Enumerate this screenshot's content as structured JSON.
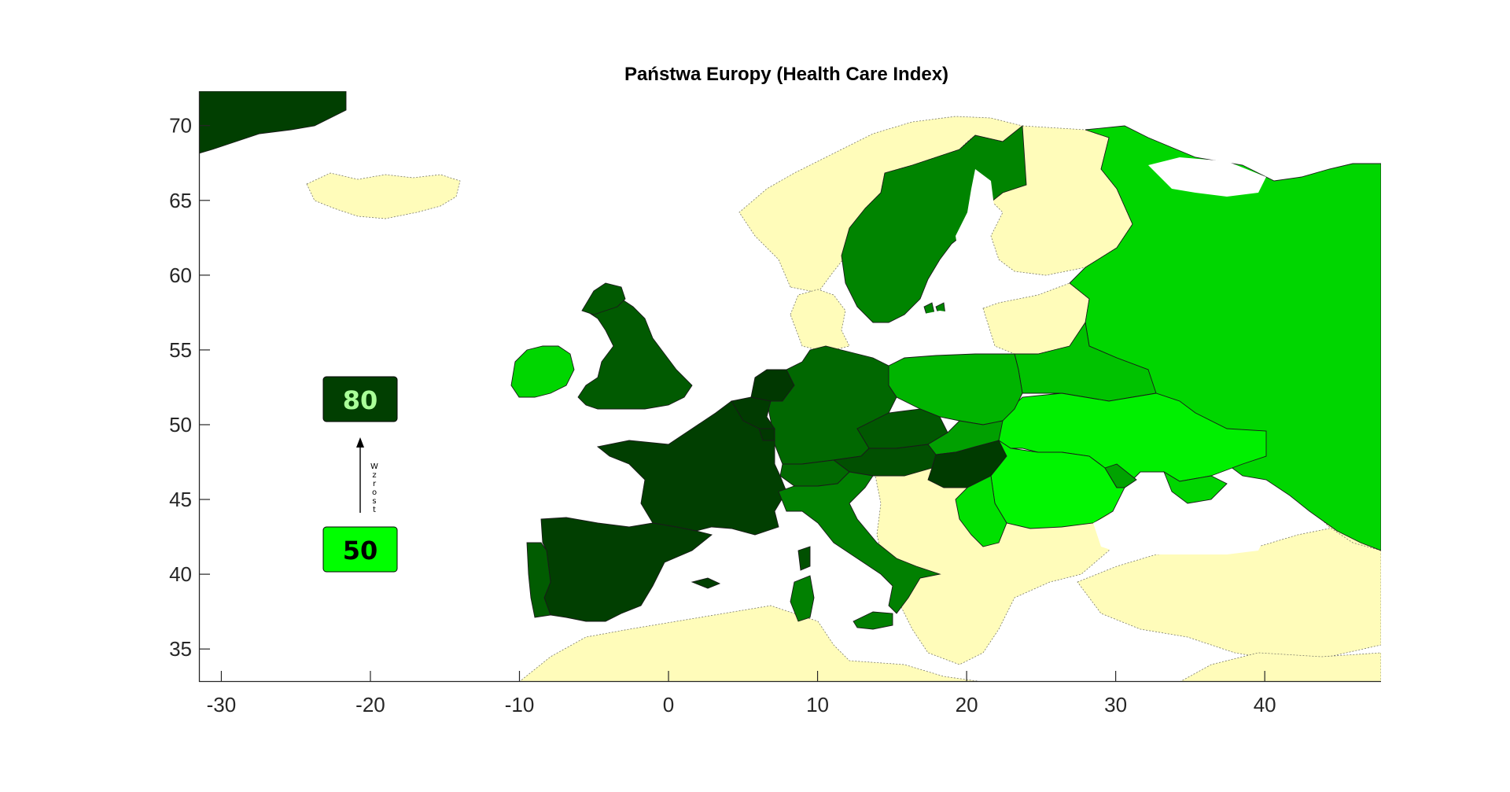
{
  "title": "Państwa Europy (Health Care Index)",
  "axes": {
    "x_ticks": [
      "-30",
      "-20",
      "-10",
      "0",
      "10",
      "20",
      "30",
      "40"
    ],
    "y_ticks": [
      "70",
      "65",
      "60",
      "55",
      "50",
      "45",
      "40",
      "35"
    ],
    "x_range": [
      -31.5,
      47.8
    ],
    "y_range": [
      32.8,
      72.3
    ],
    "grid": false
  },
  "legend": {
    "high_value": "80",
    "low_value": "50",
    "arrow_label": [
      "W",
      "z",
      "r",
      "o",
      "s",
      "t"
    ],
    "placement": "left",
    "high_color": "#013f01",
    "low_color": "#00ff00",
    "high_text_color": "#aaff99",
    "low_text_color": "#000000"
  },
  "colors": {
    "no_data": "#fffcba",
    "water": "#ffffff",
    "scale_dark": "#013f01",
    "scale_light": "#00ff00"
  }
}
